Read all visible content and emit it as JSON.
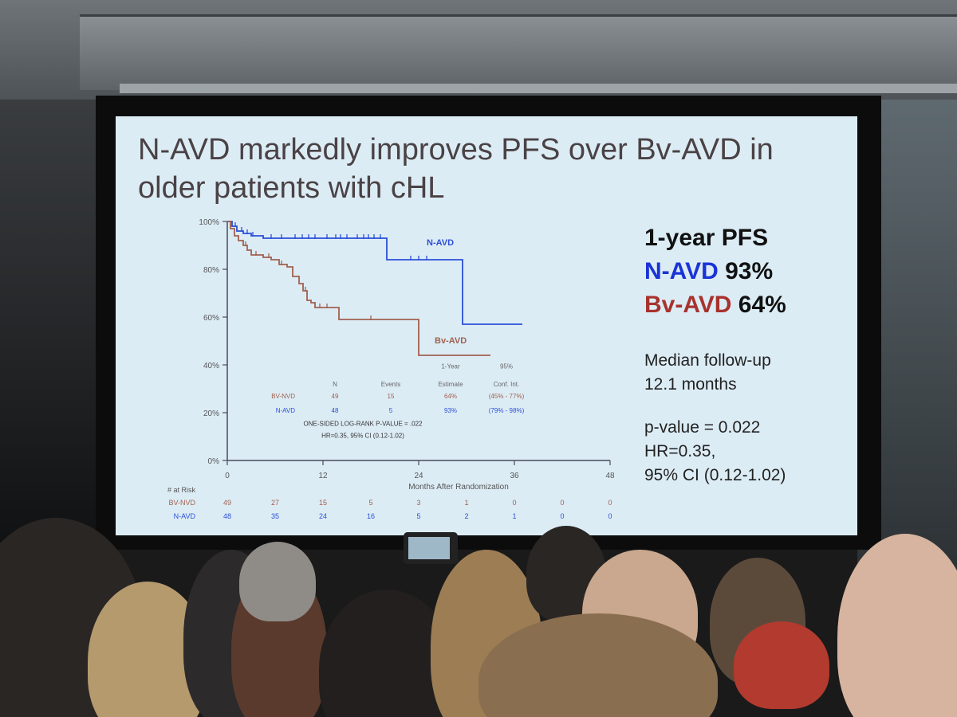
{
  "slide": {
    "title": "N-AVD markedly improves PFS over Bv-AVD in older patients with cHL",
    "pfs_heading": "1-year PFS",
    "arm1_name": "N-AVD",
    "arm1_pfs": "93%",
    "arm2_name": "Bv-AVD",
    "arm2_pfs": "64%",
    "followup_label": "Median follow-up",
    "followup_value": "12.1 months",
    "pvalue": "p-value = 0.022",
    "hr": "HR=0.35,",
    "ci": "95% CI (0.12-1.02)"
  },
  "colors": {
    "nAVD": "#2b4fd8",
    "bvAVD": "#a0614f",
    "axis": "#4a4a5a"
  },
  "chart_data": {
    "type": "line",
    "xlabel": "Months After Randomization",
    "ylabel": "",
    "xlim": [
      0,
      48
    ],
    "ylim": [
      0,
      100
    ],
    "x_ticks": [
      "0",
      "12",
      "24",
      "36",
      "48"
    ],
    "y_ticks": [
      "0%",
      "20%",
      "40%",
      "60%",
      "80%",
      "100%"
    ],
    "series": [
      {
        "name": "N-AVD",
        "color": "#2b4fd8",
        "points": [
          [
            0,
            100
          ],
          [
            0.6,
            98
          ],
          [
            1.2,
            96
          ],
          [
            2,
            95
          ],
          [
            3,
            94
          ],
          [
            4.5,
            93
          ],
          [
            20,
            93
          ],
          [
            20,
            84
          ],
          [
            29.5,
            84
          ],
          [
            29.5,
            57
          ],
          [
            37,
            57
          ]
        ],
        "censor_x": [
          1,
          1.8,
          2.5,
          3.2,
          5.5,
          6.8,
          8.5,
          9.4,
          10.2,
          11,
          12.5,
          13.6,
          14.2,
          15,
          16.3,
          17.1,
          17.7,
          18.4,
          19.2,
          23,
          24,
          25
        ]
      },
      {
        "name": "Bv-AVD",
        "color": "#a0614f",
        "points": [
          [
            0,
            100
          ],
          [
            0.4,
            97
          ],
          [
            0.9,
            94
          ],
          [
            1.4,
            92
          ],
          [
            2,
            90
          ],
          [
            2.5,
            88
          ],
          [
            3,
            86
          ],
          [
            4.5,
            85
          ],
          [
            5.5,
            84
          ],
          [
            6.5,
            82
          ],
          [
            7.5,
            81
          ],
          [
            8.2,
            77
          ],
          [
            9,
            74
          ],
          [
            9.5,
            71
          ],
          [
            10,
            67
          ],
          [
            10.5,
            66
          ],
          [
            11,
            64
          ],
          [
            14,
            64
          ],
          [
            14,
            59
          ],
          [
            24,
            59
          ],
          [
            24,
            44
          ],
          [
            33,
            44
          ]
        ],
        "censor_x": [
          2.3,
          3.6,
          5.2,
          6.8,
          9.8,
          11.6,
          12.5,
          18
        ]
      }
    ],
    "annotations": {
      "nAVD_label": "N-AVD",
      "bvAVD_label": "Bv-AVD",
      "table_headers": [
        "N",
        "Events",
        "1-Year Estimate",
        "95% Conf. Int."
      ],
      "table_rows": [
        {
          "arm": "BV-NVD",
          "n": "49",
          "events": "15",
          "estimate": "64%",
          "ci": "(45% - 77%)"
        },
        {
          "arm": "N-AVD",
          "n": "48",
          "events": "5",
          "estimate": "93%",
          "ci": "(79% - 98%)"
        }
      ],
      "logrank": "ONE-SIDED LOG-RANK P-VALUE = .022",
      "hr_text": "HR=0.35, 95% CI (0.12-1.02)"
    },
    "at_risk": {
      "label": "# at Risk",
      "columns": [
        0,
        6,
        12,
        18,
        24,
        30,
        36,
        42,
        48
      ],
      "rows": [
        {
          "arm": "BV-NVD",
          "counts": [
            "49",
            "27",
            "15",
            "5",
            "3",
            "1",
            "0",
            "0",
            "0"
          ]
        },
        {
          "arm": "N-AVD",
          "counts": [
            "48",
            "35",
            "24",
            "16",
            "5",
            "2",
            "1",
            "0",
            "0"
          ]
        }
      ]
    }
  }
}
